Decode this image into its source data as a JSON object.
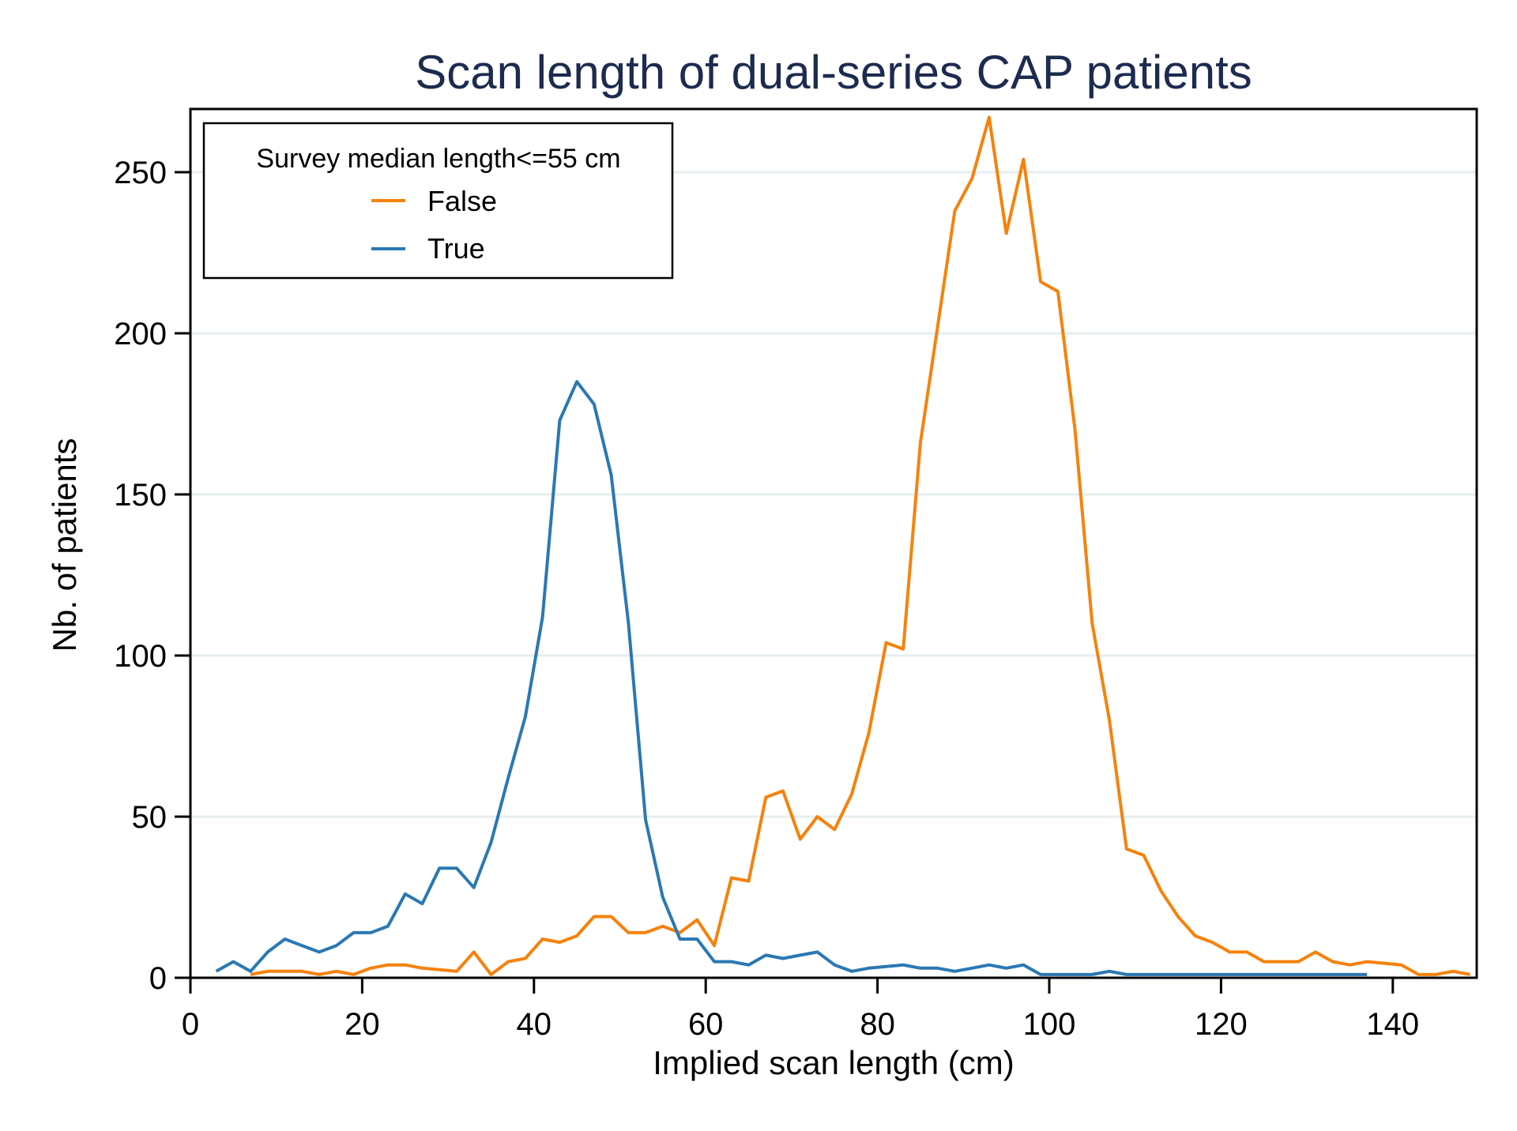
{
  "chart_data": {
    "type": "line",
    "title": "Scan length of dual-series CAP patients",
    "xlabel": "Implied scan length (cm)",
    "ylabel": "Nb. of patients",
    "xlim": [
      0,
      150
    ],
    "ylim": [
      0,
      270
    ],
    "xticks": [
      0,
      20,
      40,
      60,
      80,
      100,
      120,
      140
    ],
    "yticks": [
      0,
      50,
      100,
      150,
      200,
      250
    ],
    "grid": "horizontal",
    "legend": {
      "title": "Survey median length<=55 cm",
      "position": "top-left",
      "entries": [
        "False",
        "True"
      ]
    },
    "series": [
      {
        "name": "False",
        "color": "#f5820d",
        "x": [
          7,
          9,
          11,
          13,
          15,
          17,
          19,
          21,
          23,
          25,
          27,
          29,
          31,
          33,
          35,
          37,
          39,
          41,
          43,
          45,
          47,
          49,
          51,
          53,
          55,
          57,
          59,
          61,
          63,
          65,
          67,
          69,
          71,
          73,
          75,
          77,
          79,
          81,
          83,
          85,
          87,
          89,
          91,
          93,
          95,
          97,
          99,
          101,
          103,
          105,
          107,
          109,
          111,
          113,
          115,
          117,
          119,
          121,
          123,
          125,
          127,
          129,
          131,
          133,
          135,
          137,
          139,
          141,
          143,
          145,
          147,
          149
        ],
        "values": [
          1,
          2,
          2,
          2,
          1,
          2,
          1,
          3,
          4,
          4,
          3,
          2.5,
          2,
          8,
          1,
          5,
          6,
          12,
          11,
          13,
          19,
          19,
          14,
          14,
          16,
          14,
          18,
          10,
          31,
          30,
          56,
          58,
          43,
          50,
          46,
          57,
          76,
          104,
          102,
          166,
          202,
          238,
          248,
          267,
          231,
          254,
          216,
          213,
          170,
          110,
          80,
          40,
          38,
          27,
          19,
          13,
          11,
          8,
          8,
          5,
          5,
          5,
          8,
          5,
          4,
          5,
          4.5,
          4,
          1,
          1,
          2,
          1
        ]
      },
      {
        "name": "True",
        "color": "#2a78b3",
        "x": [
          3,
          5,
          7,
          9,
          11,
          13,
          15,
          17,
          19,
          21,
          23,
          25,
          27,
          29,
          31,
          33,
          35,
          37,
          39,
          41,
          43,
          45,
          47,
          49,
          51,
          53,
          55,
          57,
          59,
          61,
          63,
          65,
          67,
          69,
          71,
          73,
          75,
          77,
          79,
          81,
          83,
          85,
          87,
          89,
          91,
          93,
          95,
          97,
          99,
          101,
          103,
          105,
          107,
          109,
          111,
          113,
          115,
          117,
          119,
          121,
          123,
          125,
          127,
          129,
          131,
          133,
          135,
          137
        ],
        "values": [
          2,
          5,
          2,
          8,
          12,
          10,
          8,
          10,
          14,
          14,
          16,
          26,
          23,
          34,
          34,
          28,
          42,
          62,
          81,
          112,
          173,
          185,
          178,
          156,
          110,
          49,
          25,
          12,
          12,
          5,
          5,
          4,
          7,
          6,
          7,
          8,
          4,
          2,
          3,
          3.5,
          4,
          3,
          3,
          2,
          3,
          4,
          3,
          4,
          1,
          1,
          1,
          1,
          2,
          1,
          1,
          1,
          1,
          1,
          1,
          1,
          1,
          1,
          1,
          1,
          1,
          1,
          1,
          1
        ]
      }
    ]
  }
}
